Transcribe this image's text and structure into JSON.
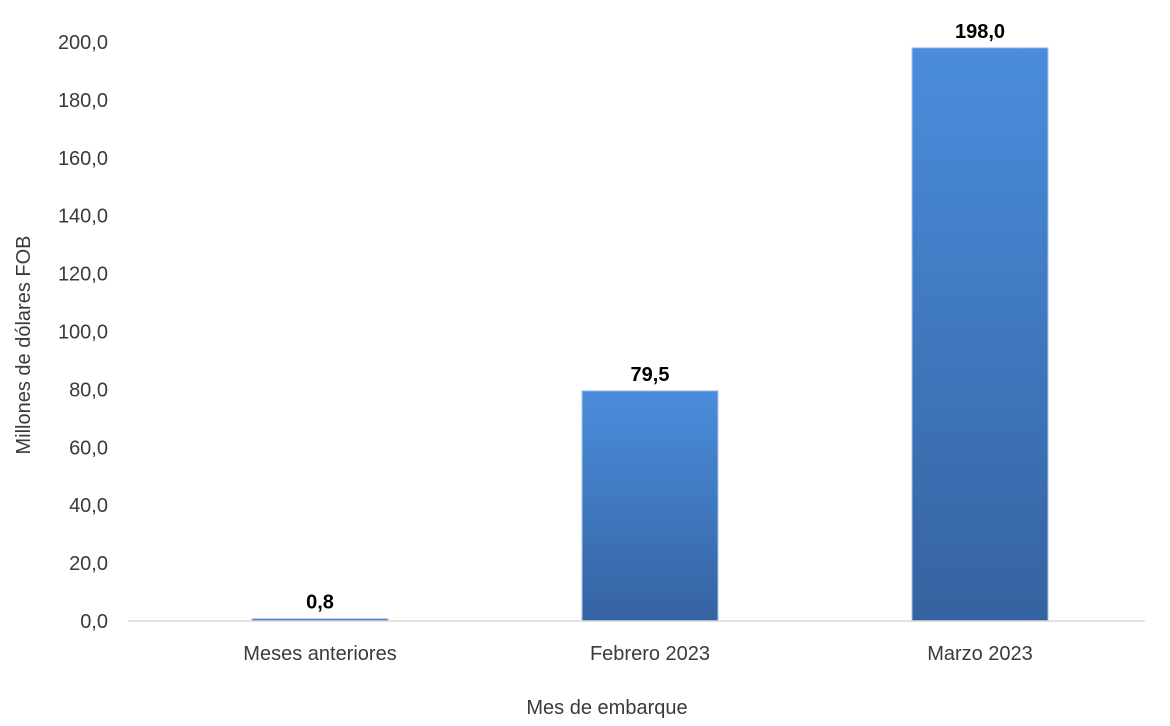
{
  "chart_data": {
    "type": "bar",
    "title": "",
    "xlabel": "Mes de embarque",
    "ylabel": "Millones de dólares FOB",
    "categories": [
      "Meses anteriores",
      "Febrero 2023",
      "Marzo 2023"
    ],
    "values": [
      0.8,
      79.5,
      198.0
    ],
    "data_labels": [
      "0,8",
      "79,5",
      "198,0"
    ],
    "ylim": [
      0,
      200
    ],
    "yticks": [
      0,
      20,
      40,
      60,
      80,
      100,
      120,
      140,
      160,
      180,
      200
    ],
    "ytick_labels": [
      "0,0",
      "20,0",
      "40,0",
      "60,0",
      "80,0",
      "100,0",
      "120,0",
      "140,0",
      "160,0",
      "180,0",
      "200,0"
    ],
    "grid": false,
    "legend": "none",
    "colors": {
      "bar_top": "#4a8ddc",
      "bar_bottom": "#3563a1",
      "axis": "#d9d9d9"
    }
  }
}
